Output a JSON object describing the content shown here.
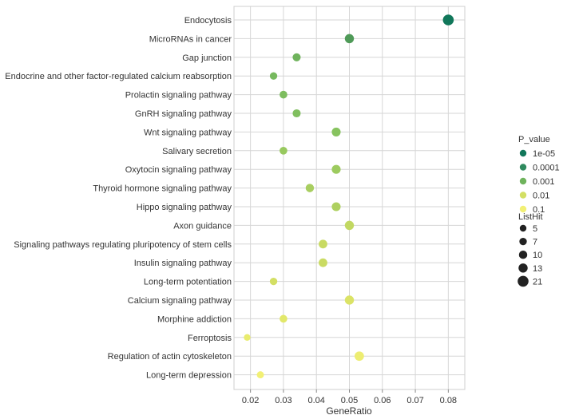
{
  "chart_data": {
    "type": "scatter",
    "title": "",
    "xlabel": "GeneRatio",
    "ylabel": "",
    "xlim": [
      0.015,
      0.085
    ],
    "xticks": [
      0.02,
      0.03,
      0.04,
      0.05,
      0.06,
      0.07,
      0.08
    ],
    "grid": true,
    "legend_position": "right",
    "points": [
      {
        "term": "Endocytosis",
        "gene_ratio": 0.08,
        "list_hit": 21,
        "p_value": 1e-05,
        "color": "#11775a"
      },
      {
        "term": "MicroRNAs in cancer",
        "gene_ratio": 0.05,
        "list_hit": 13,
        "p_value": 0.0004,
        "color": "#4f9a58"
      },
      {
        "term": "Gap junction",
        "gene_ratio": 0.034,
        "list_hit": 9,
        "p_value": 0.001,
        "color": "#6fb35c"
      },
      {
        "term": "Endocrine and other factor-regulated calcium reabsorption",
        "gene_ratio": 0.027,
        "list_hit": 7,
        "p_value": 0.0015,
        "color": "#76b95e"
      },
      {
        "term": "Prolactin signaling pathway",
        "gene_ratio": 0.03,
        "list_hit": 8,
        "p_value": 0.0017,
        "color": "#7dbd5f"
      },
      {
        "term": "GnRH signaling pathway",
        "gene_ratio": 0.034,
        "list_hit": 9,
        "p_value": 0.0018,
        "color": "#80bf5f"
      },
      {
        "term": "Wnt signaling pathway",
        "gene_ratio": 0.046,
        "list_hit": 12,
        "p_value": 0.002,
        "color": "#87c35f"
      },
      {
        "term": "Salivary secretion",
        "gene_ratio": 0.03,
        "list_hit": 8,
        "p_value": 0.003,
        "color": "#98c95f"
      },
      {
        "term": "Oxytocin signaling pathway",
        "gene_ratio": 0.046,
        "list_hit": 12,
        "p_value": 0.003,
        "color": "#9dcb5f"
      },
      {
        "term": "Thyroid hormone signaling pathway",
        "gene_ratio": 0.038,
        "list_hit": 10,
        "p_value": 0.004,
        "color": "#a8ce60"
      },
      {
        "term": "Hippo signaling pathway",
        "gene_ratio": 0.046,
        "list_hit": 12,
        "p_value": 0.005,
        "color": "#aed060"
      },
      {
        "term": "Axon guidance",
        "gene_ratio": 0.05,
        "list_hit": 13,
        "p_value": 0.007,
        "color": "#c2d862"
      },
      {
        "term": "Signaling pathways regulating pluripotency of stem cells",
        "gene_ratio": 0.042,
        "list_hit": 11,
        "p_value": 0.008,
        "color": "#c8da62"
      },
      {
        "term": "Insulin signaling pathway",
        "gene_ratio": 0.042,
        "list_hit": 11,
        "p_value": 0.008,
        "color": "#cadb63"
      },
      {
        "term": "Long-term potentiation",
        "gene_ratio": 0.027,
        "list_hit": 7,
        "p_value": 0.01,
        "color": "#d3df64"
      },
      {
        "term": "Calcium signaling pathway",
        "gene_ratio": 0.05,
        "list_hit": 13,
        "p_value": 0.02,
        "color": "#dbe366"
      },
      {
        "term": "Morphine addiction",
        "gene_ratio": 0.03,
        "list_hit": 8,
        "p_value": 0.03,
        "color": "#e2e86a"
      },
      {
        "term": "Ferroptosis",
        "gene_ratio": 0.019,
        "list_hit": 5,
        "p_value": 0.05,
        "color": "#e9ec6e"
      },
      {
        "term": "Regulation of actin cytoskeleton",
        "gene_ratio": 0.053,
        "list_hit": 14,
        "p_value": 0.06,
        "color": "#eded72"
      },
      {
        "term": "Long-term depression",
        "gene_ratio": 0.023,
        "list_hit": 6,
        "p_value": 0.1,
        "color": "#f2f075"
      }
    ],
    "legend": {
      "color_title": "P_value",
      "color_entries": [
        {
          "label": "1e-05",
          "color": "#11775a"
        },
        {
          "label": "0.0001",
          "color": "#2f8a5e"
        },
        {
          "label": "0.001",
          "color": "#6fb35c"
        },
        {
          "label": "0.01",
          "color": "#d3df64"
        },
        {
          "label": "0.1",
          "color": "#f2f075"
        }
      ],
      "size_title": "ListHit",
      "size_entries": [
        {
          "label": "5",
          "value": 5
        },
        {
          "label": "7",
          "value": 7
        },
        {
          "label": "10",
          "value": 10
        },
        {
          "label": "13",
          "value": 13
        },
        {
          "label": "21",
          "value": 21
        }
      ]
    }
  }
}
